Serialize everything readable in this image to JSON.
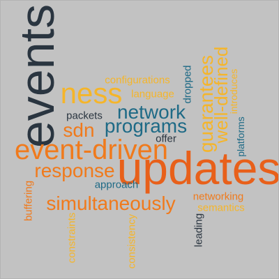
{
  "colors": {
    "background": "#c2c2c2",
    "orange": "#f07a1c",
    "dark_orange": "#e8601a",
    "yellow": "#f5b52a",
    "teal": "#1e6a86",
    "dark": "#2a3540"
  },
  "words": [
    {
      "id": "events",
      "text": "events",
      "color": "dark"
    },
    {
      "id": "updates",
      "text": "updates",
      "color": "dark_orange"
    },
    {
      "id": "event-driven",
      "text": "event-driven",
      "color": "orange"
    },
    {
      "id": "ness",
      "text": "ness",
      "color": "yellow"
    },
    {
      "id": "network",
      "text": "network",
      "color": "teal"
    },
    {
      "id": "programs",
      "text": "programs",
      "color": "teal"
    },
    {
      "id": "sdn",
      "text": "sdn",
      "color": "orange"
    },
    {
      "id": "response",
      "text": "response",
      "color": "orange"
    },
    {
      "id": "simultaneously",
      "text": "simultaneously",
      "color": "orange"
    },
    {
      "id": "guarantees",
      "text": "guarantees",
      "color": "yellow"
    },
    {
      "id": "well-defined",
      "text": "well-defined",
      "color": "yellow"
    },
    {
      "id": "configurations",
      "text": "configurations",
      "color": "yellow"
    },
    {
      "id": "language",
      "text": "language",
      "color": "yellow"
    },
    {
      "id": "packets",
      "text": "packets",
      "color": "dark"
    },
    {
      "id": "offer",
      "text": "offer",
      "color": "dark"
    },
    {
      "id": "dropped",
      "text": "dropped",
      "color": "teal"
    },
    {
      "id": "introduces",
      "text": "introduces",
      "color": "yellow"
    },
    {
      "id": "platforms",
      "text": "platforms",
      "color": "teal"
    },
    {
      "id": "approach",
      "text": "approach",
      "color": "teal"
    },
    {
      "id": "buffering",
      "text": "buffering",
      "color": "orange"
    },
    {
      "id": "networking",
      "text": "networking",
      "color": "orange"
    },
    {
      "id": "semantics",
      "text": "semantics",
      "color": "yellow"
    },
    {
      "id": "constraints",
      "text": "constraints",
      "color": "yellow"
    },
    {
      "id": "consistency",
      "text": "consistency",
      "color": "yellow"
    },
    {
      "id": "leading",
      "text": "leading",
      "color": "dark"
    }
  ]
}
